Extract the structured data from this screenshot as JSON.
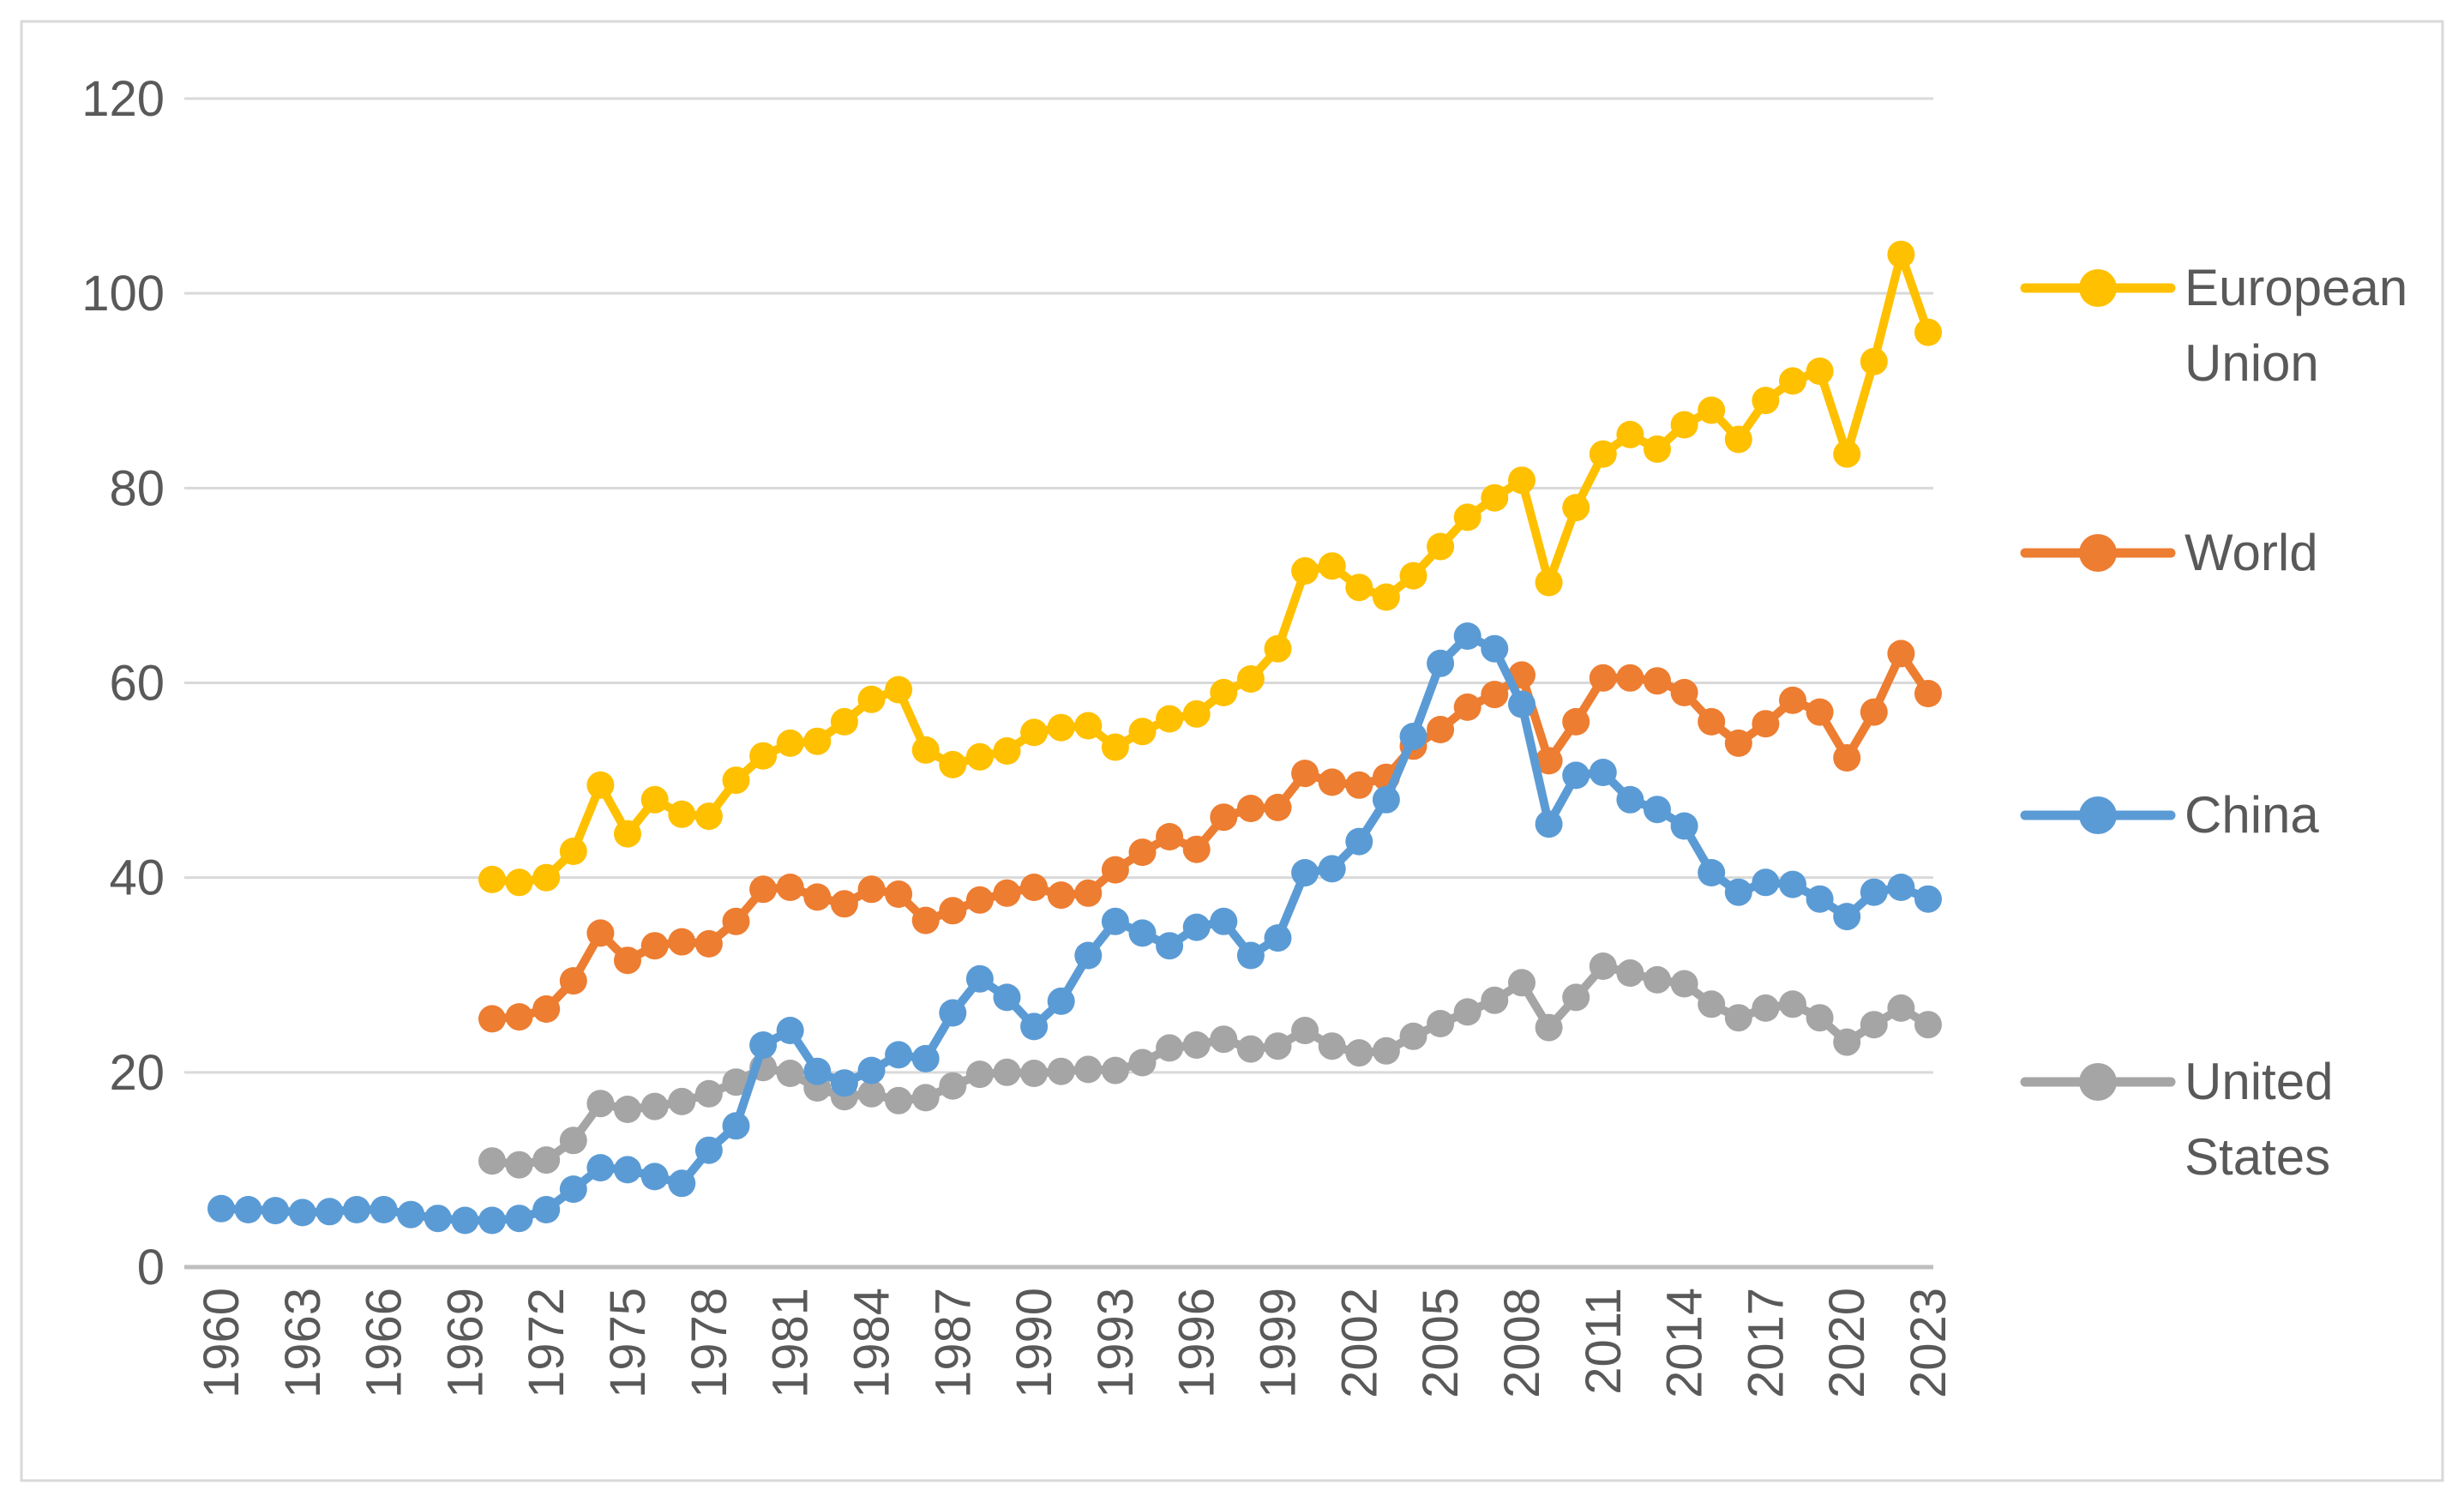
{
  "chart_data": {
    "type": "line",
    "title": "",
    "xlabel": "",
    "ylabel": "",
    "ylim": [
      0,
      120
    ],
    "y_ticks": [
      0,
      20,
      40,
      60,
      80,
      100,
      120
    ],
    "x_tick_years": [
      1960,
      1963,
      1966,
      1969,
      1972,
      1975,
      1978,
      1981,
      1984,
      1987,
      1990,
      1993,
      1996,
      1999,
      2002,
      2005,
      2008,
      2011,
      2014,
      2017,
      2020,
      2023
    ],
    "grid": true,
    "legend_position": "right",
    "x": [
      1960,
      1961,
      1962,
      1963,
      1964,
      1965,
      1966,
      1967,
      1968,
      1969,
      1970,
      1971,
      1972,
      1973,
      1974,
      1975,
      1976,
      1977,
      1978,
      1979,
      1980,
      1981,
      1982,
      1983,
      1984,
      1985,
      1986,
      1987,
      1988,
      1989,
      1990,
      1991,
      1992,
      1993,
      1994,
      1995,
      1996,
      1997,
      1998,
      1999,
      2000,
      2001,
      2002,
      2003,
      2004,
      2005,
      2006,
      2007,
      2008,
      2009,
      2010,
      2011,
      2012,
      2013,
      2014,
      2015,
      2016,
      2017,
      2018,
      2019,
      2020,
      2021,
      2022,
      2023
    ],
    "series": [
      {
        "name": "European Union",
        "label_lines": [
          "European",
          "Union"
        ],
        "color": "#FFC000",
        "values": [
          null,
          null,
          null,
          null,
          null,
          null,
          null,
          null,
          null,
          null,
          39.8,
          39.5,
          40,
          42.7,
          49.5,
          44.5,
          48,
          46.5,
          46.3,
          50,
          52.5,
          53.8,
          54,
          56,
          58.3,
          59.3,
          53.1,
          51.6,
          52.4,
          53,
          54.9,
          55.4,
          55.6,
          53.4,
          55,
          56.3,
          56.8,
          59,
          60.4,
          63.5,
          71.5,
          72,
          69.8,
          68.8,
          71,
          74,
          77,
          79,
          80.8,
          70.3,
          78,
          83.5,
          85.5,
          84,
          86.5,
          88,
          85,
          89,
          91,
          92,
          83.5,
          93,
          104,
          96
        ]
      },
      {
        "name": "World",
        "label_lines": [
          "World"
        ],
        "color": "#ED7D31",
        "values": [
          null,
          null,
          null,
          null,
          null,
          null,
          null,
          null,
          null,
          null,
          25.5,
          25.7,
          26.5,
          29.4,
          34.3,
          31.5,
          33,
          33.4,
          33.2,
          35.5,
          38.8,
          39,
          38,
          37.3,
          38.8,
          38.3,
          35.6,
          36.6,
          37.7,
          38.4,
          39,
          38.2,
          38.4,
          40.8,
          42.6,
          44.2,
          42.9,
          46.2,
          47.1,
          47.2,
          50.7,
          49.8,
          49.5,
          50.3,
          53.5,
          55.2,
          57.5,
          58.8,
          60.8,
          52,
          56,
          60.5,
          60.5,
          60.2,
          59,
          56,
          53.8,
          55.8,
          58.2,
          57,
          52.3,
          57,
          63,
          58.9
        ]
      },
      {
        "name": "China",
        "label_lines": [
          "China"
        ],
        "color": "#5B9BD5",
        "values": [
          6,
          5.9,
          5.8,
          5.6,
          5.7,
          5.9,
          5.9,
          5.4,
          5,
          4.8,
          4.8,
          5,
          5.9,
          8,
          10.2,
          10,
          9.3,
          8.6,
          12,
          14.5,
          22.8,
          24.3,
          20.1,
          18.9,
          20.2,
          21.8,
          21.4,
          26.1,
          29.6,
          27.7,
          24.7,
          27.3,
          32,
          35.5,
          34.3,
          33,
          34.9,
          35.5,
          32,
          33.8,
          40.5,
          40.9,
          43.7,
          48,
          54.5,
          62,
          64.8,
          63.5,
          57.8,
          45.5,
          50.5,
          50.8,
          48,
          47,
          45.3,
          40.5,
          38.5,
          39.5,
          39.3,
          37.8,
          36,
          38.5,
          39,
          37.8
        ]
      },
      {
        "name": "United States",
        "label_lines": [
          "United",
          "States"
        ],
        "color": "#A5A5A5",
        "values": [
          null,
          null,
          null,
          null,
          null,
          null,
          null,
          null,
          null,
          null,
          10.9,
          10.5,
          11,
          13,
          16.8,
          16.2,
          16.5,
          17,
          17.8,
          19,
          20.5,
          19.9,
          18.4,
          17.5,
          17.8,
          17.1,
          17.4,
          18.6,
          19.8,
          20,
          19.9,
          20.1,
          20.3,
          20.2,
          21,
          22.5,
          22.8,
          23.4,
          22.4,
          22.7,
          24.3,
          22.7,
          22,
          22.2,
          23.7,
          25,
          26.2,
          27.4,
          29.2,
          24.6,
          27.7,
          30.9,
          30.2,
          29.5,
          29.1,
          27,
          25.6,
          26.6,
          27,
          25.6,
          23.1,
          24.9,
          26.6,
          24.9
        ]
      }
    ],
    "colors": {
      "gridline": "#D9D9D9",
      "zero_axis_line": "#BFBFBF",
      "axis_text": "#595959",
      "legend_text": "#595959",
      "outer_border": "#D9D9D9",
      "background": "#FFFFFF"
    }
  }
}
